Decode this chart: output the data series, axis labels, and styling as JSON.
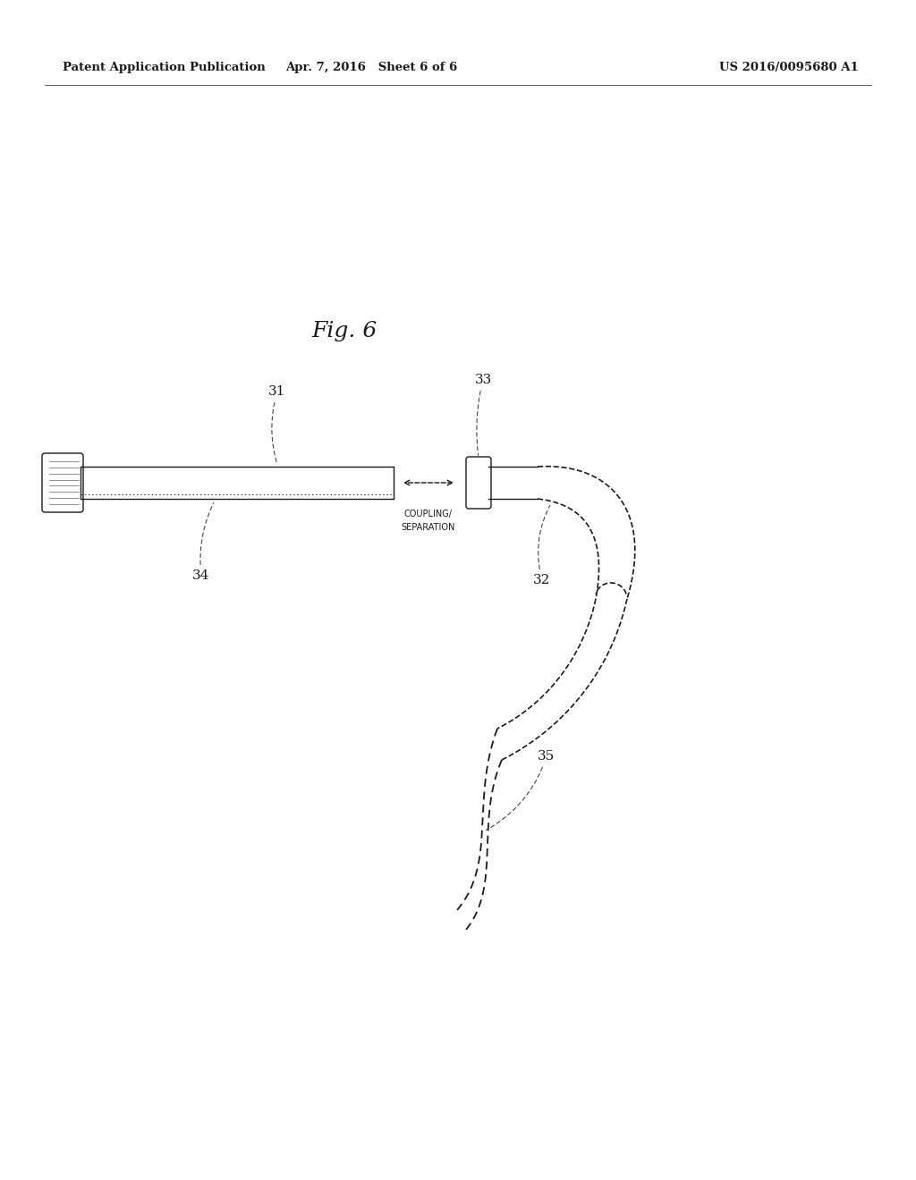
{
  "bg_color": "#ffffff",
  "line_color": "#1a1a1a",
  "header_left": "Patent Application Publication",
  "header_mid": "Apr. 7, 2016   Sheet 6 of 6",
  "header_right": "US 2016/0095680 A1",
  "fig_label": "Fig. 6",
  "coupling_text_1": "COUPLING/",
  "coupling_text_2": "SEPARATION",
  "label_31": "31",
  "label_32": "32",
  "label_33": "33",
  "label_34": "34",
  "label_35": "35"
}
